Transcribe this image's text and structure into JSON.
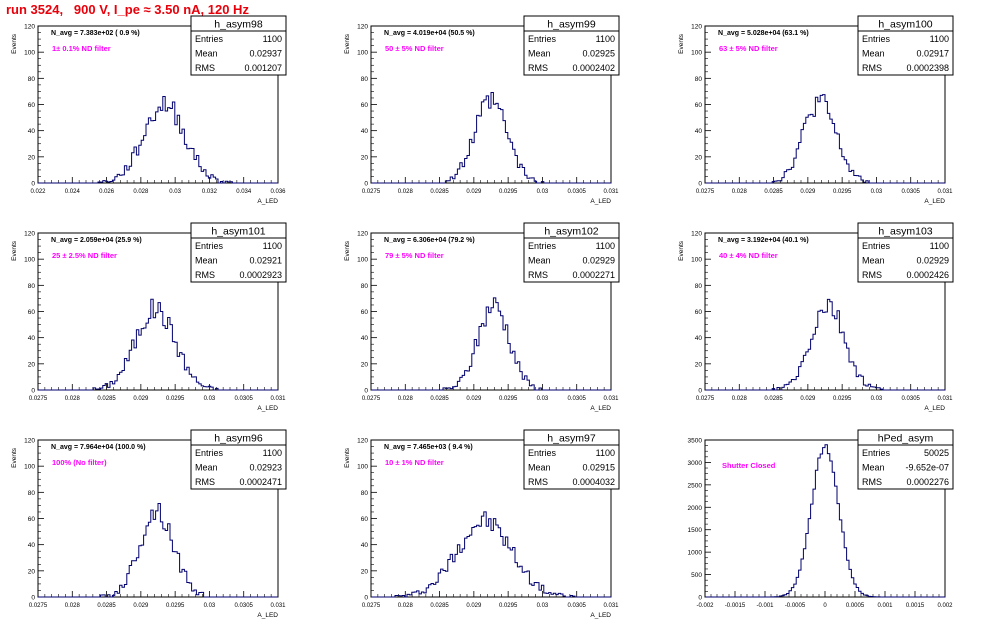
{
  "run_title": "run 3524,   900 V, I_pe ≈ 3.50 nA, 120 Hz",
  "colors": {
    "title": "#e8000b",
    "note": "#ff00ff",
    "hist": "#00006e",
    "axis": "#000000"
  },
  "stats_labels": {
    "entries": "Entries",
    "mean": "Mean",
    "rms": "RMS"
  },
  "chart_data": [
    {
      "type": "bar",
      "name": "h_asym98",
      "title_box": "h_asym98",
      "ylabel": "Events",
      "xlabel": "A_LED",
      "navg": "N_avg = 7.383e+02 ( 0.9 %)",
      "note": "1± 0.1% ND filter",
      "entries": "1100",
      "mean": "0.02937",
      "rms": "0.001207",
      "xlim": [
        0.022,
        0.036
      ],
      "ylim": [
        0,
        120
      ],
      "xticks": [
        "0.022",
        "0.024",
        "0.026",
        "0.028",
        "0.03",
        "0.032",
        "0.034",
        "0.036"
      ],
      "yticks": [
        "0",
        "20",
        "40",
        "60",
        "80",
        "100",
        "120"
      ],
      "mu": 0.02937,
      "sigma": 0.001207,
      "peak": 60,
      "seed": 98
    },
    {
      "type": "bar",
      "name": "h_asym99",
      "title_box": "h_asym99",
      "ylabel": "Events",
      "xlabel": "A_LED",
      "navg": "N_avg = 4.019e+04 (50.5 %)",
      "note": "50 ± 5% ND filter",
      "entries": "1100",
      "mean": "0.02925",
      "rms": "0.0002402",
      "xlim": [
        0.0275,
        0.031
      ],
      "ylim": [
        0,
        120
      ],
      "xticks": [
        "0.0275",
        "0.028",
        "0.0285",
        "0.029",
        "0.0295",
        "0.03",
        "0.0305",
        "0.031"
      ],
      "yticks": [
        "0",
        "20",
        "40",
        "60",
        "80",
        "100",
        "120"
      ],
      "mu": 0.02925,
      "sigma": 0.00024,
      "peak": 62,
      "seed": 99
    },
    {
      "type": "bar",
      "name": "h_asym100",
      "title_box": "h_asym100",
      "ylabel": "Events",
      "xlabel": "A_LED",
      "navg": "N_avg = 5.028e+04 (63.1 %)",
      "note": "63 ± 5% ND filter",
      "entries": "1100",
      "mean": "0.02917",
      "rms": "0.0002398",
      "xlim": [
        0.0275,
        0.031
      ],
      "ylim": [
        0,
        120
      ],
      "xticks": [
        "0.0275",
        "0.028",
        "0.0285",
        "0.029",
        "0.0295",
        "0.03",
        "0.0305",
        "0.031"
      ],
      "yticks": [
        "0",
        "20",
        "40",
        "60",
        "80",
        "100",
        "120"
      ],
      "mu": 0.02917,
      "sigma": 0.00024,
      "peak": 62,
      "seed": 100
    },
    {
      "type": "bar",
      "name": "h_asym101",
      "title_box": "h_asym101",
      "ylabel": "Events",
      "xlabel": "A_LED",
      "navg": "N_avg = 2.059e+04 (25.9 %)",
      "note": "25 ± 2.5% ND filter",
      "entries": "1100",
      "mean": "0.02921",
      "rms": "0.0002923",
      "xlim": [
        0.0275,
        0.031
      ],
      "ylim": [
        0,
        120
      ],
      "xticks": [
        "0.0275",
        "0.028",
        "0.0285",
        "0.029",
        "0.0295",
        "0.03",
        "0.0305",
        "0.031"
      ],
      "yticks": [
        "0",
        "20",
        "40",
        "60",
        "80",
        "100",
        "120"
      ],
      "mu": 0.02921,
      "sigma": 0.00029,
      "peak": 62,
      "seed": 101
    },
    {
      "type": "bar",
      "name": "h_asym102",
      "title_box": "h_asym102",
      "ylabel": "Events",
      "xlabel": "A_LED",
      "navg": "N_avg = 6.306e+04 (79.2 %)",
      "note": "79 ± 5% ND filter",
      "entries": "1100",
      "mean": "0.02929",
      "rms": "0.0002271",
      "xlim": [
        0.0275,
        0.031
      ],
      "ylim": [
        0,
        120
      ],
      "xticks": [
        "0.0275",
        "0.028",
        "0.0285",
        "0.029",
        "0.0295",
        "0.03",
        "0.0305",
        "0.031"
      ],
      "yticks": [
        "0",
        "20",
        "40",
        "60",
        "80",
        "100",
        "120"
      ],
      "mu": 0.02929,
      "sigma": 0.000227,
      "peak": 65,
      "seed": 102
    },
    {
      "type": "bar",
      "name": "h_asym103",
      "title_box": "h_asym103",
      "ylabel": "Events",
      "xlabel": "A_LED",
      "navg": "N_avg = 3.192e+04 (40.1 %)",
      "note": "40 ± 4% ND filter",
      "entries": "1100",
      "mean": "0.02929",
      "rms": "0.0002426",
      "xlim": [
        0.0275,
        0.031
      ],
      "ylim": [
        0,
        120
      ],
      "xticks": [
        "0.0275",
        "0.028",
        "0.0285",
        "0.029",
        "0.0295",
        "0.03",
        "0.0305",
        "0.031"
      ],
      "yticks": [
        "0",
        "20",
        "40",
        "60",
        "80",
        "100",
        "120"
      ],
      "mu": 0.02929,
      "sigma": 0.000243,
      "peak": 64,
      "seed": 103
    },
    {
      "type": "bar",
      "name": "h_asym96",
      "title_box": "h_asym96",
      "ylabel": "Events",
      "xlabel": "A_LED",
      "navg": "N_avg = 7.964e+04 (100.0 %)",
      "note": "100% (No filter)",
      "entries": "1100",
      "mean": "0.02923",
      "rms": "0.0002471",
      "xlim": [
        0.0275,
        0.031
      ],
      "ylim": [
        0,
        120
      ],
      "xticks": [
        "0.0275",
        "0.028",
        "0.0285",
        "0.029",
        "0.0295",
        "0.03",
        "0.0305",
        "0.031"
      ],
      "yticks": [
        "0",
        "20",
        "40",
        "60",
        "80",
        "100",
        "120"
      ],
      "mu": 0.02923,
      "sigma": 0.000247,
      "peak": 66,
      "seed": 96
    },
    {
      "type": "bar",
      "name": "h_asym97",
      "title_box": "h_asym97",
      "ylabel": "Events",
      "xlabel": "A_LED",
      "navg": "N_avg = 7.465e+03 ( 9.4 %)",
      "note": "10 ± 1% ND filter",
      "entries": "1100",
      "mean": "0.02915",
      "rms": "0.0004032",
      "xlim": [
        0.0275,
        0.031
      ],
      "ylim": [
        0,
        120
      ],
      "xticks": [
        "0.0275",
        "0.028",
        "0.0285",
        "0.029",
        "0.0295",
        "0.03",
        "0.0305",
        "0.031"
      ],
      "yticks": [
        "0",
        "20",
        "40",
        "60",
        "80",
        "100",
        "120"
      ],
      "mu": 0.02915,
      "sigma": 0.000403,
      "peak": 58,
      "seed": 97
    },
    {
      "type": "bar",
      "name": "hPed_asym",
      "title_box": "hPed_asym",
      "ylabel": "",
      "xlabel": "",
      "navg": "",
      "note": "Shutter Closed",
      "entries": "50025",
      "mean": "-9.652e-07",
      "rms": "0.0002276",
      "xlim": [
        -0.002,
        0.002
      ],
      "ylim": [
        0,
        3500
      ],
      "xticks": [
        "-0.002",
        "-0.0015",
        "-0.001",
        "-0.0005",
        "0",
        "0.0005",
        "0.001",
        "0.0015",
        "0.002"
      ],
      "yticks": [
        "0",
        "500",
        "1000",
        "1500",
        "2000",
        "2500",
        "3000",
        "3500"
      ],
      "mu": 0.0,
      "sigma": 0.000228,
      "peak": 3350,
      "seed": 7
    }
  ]
}
